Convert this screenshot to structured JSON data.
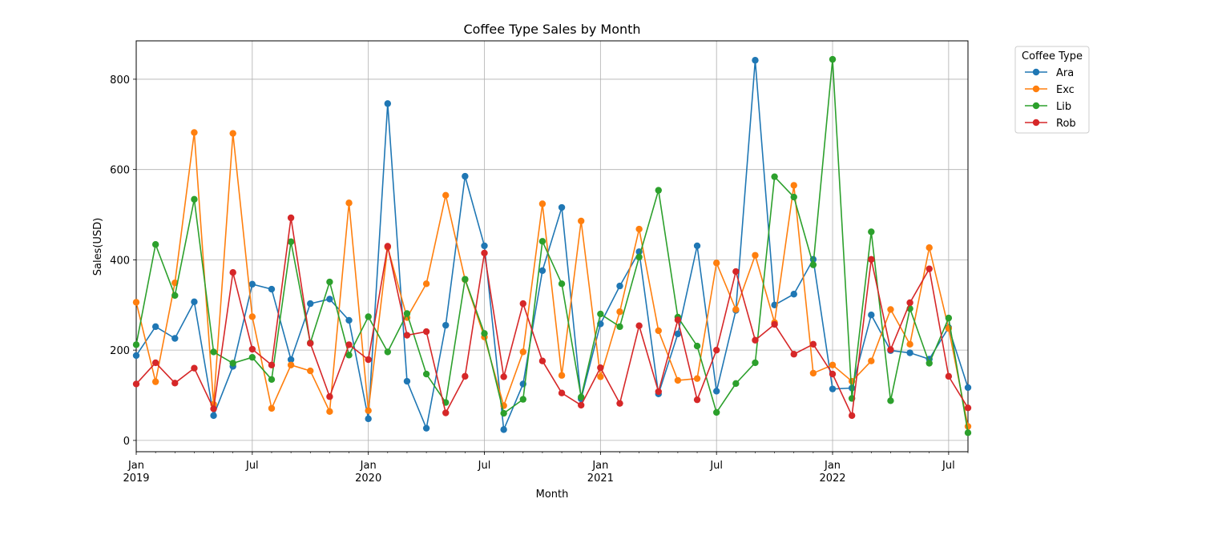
{
  "chart_data": {
    "type": "line",
    "title": "Coffee Type Sales by Month",
    "xlabel": "Month",
    "ylabel": "Sales(USD)",
    "ylim": [
      -25,
      885
    ],
    "xlim": [
      "2019-01",
      "2022-08"
    ],
    "grid": true,
    "legend": {
      "title": "Coffee Type",
      "placement": "outside-top-right"
    },
    "y_ticks": [
      0,
      200,
      400,
      600,
      800
    ],
    "x_ticks": [
      {
        "month": "2019-01",
        "label": "Jan",
        "year": "2019"
      },
      {
        "month": "2019-07",
        "label": "Jul",
        "year": ""
      },
      {
        "month": "2020-01",
        "label": "Jan",
        "year": "2020"
      },
      {
        "month": "2020-07",
        "label": "Jul",
        "year": ""
      },
      {
        "month": "2021-01",
        "label": "Jan",
        "year": "2021"
      },
      {
        "month": "2021-07",
        "label": "Jul",
        "year": ""
      },
      {
        "month": "2022-01",
        "label": "Jan",
        "year": "2022"
      },
      {
        "month": "2022-07",
        "label": "Jul",
        "year": ""
      }
    ],
    "x": [
      "2019-01",
      "2019-02",
      "2019-03",
      "2019-04",
      "2019-05",
      "2019-06",
      "2019-07",
      "2019-08",
      "2019-09",
      "2019-10",
      "2019-11",
      "2019-12",
      "2020-01",
      "2020-02",
      "2020-03",
      "2020-04",
      "2020-05",
      "2020-06",
      "2020-07",
      "2020-08",
      "2020-09",
      "2020-10",
      "2020-11",
      "2020-12",
      "2021-01",
      "2021-02",
      "2021-03",
      "2021-04",
      "2021-05",
      "2021-06",
      "2021-07",
      "2021-08",
      "2021-09",
      "2021-10",
      "2021-11",
      "2021-12",
      "2022-01",
      "2022-02",
      "2022-03",
      "2022-04",
      "2022-05",
      "2022-06",
      "2022-07",
      "2022-08"
    ],
    "series": [
      {
        "name": "Ara",
        "color": "#1f77b4",
        "values": [
          188,
          252,
          226,
          307,
          55,
          164,
          346,
          335,
          179,
          303,
          313,
          266,
          48,
          746,
          131,
          27,
          255,
          585,
          431,
          24,
          125,
          376,
          516,
          92,
          258,
          342,
          418,
          103,
          236,
          431,
          109,
          288,
          842,
          300,
          324,
          401,
          114,
          116,
          278,
          199,
          194,
          180,
          250,
          117
        ]
      },
      {
        "name": "Exc",
        "color": "#ff7f0e",
        "values": [
          306,
          130,
          349,
          682,
          80,
          680,
          274,
          71,
          167,
          154,
          64,
          526,
          66,
          428,
          272,
          347,
          543,
          356,
          229,
          77,
          196,
          524,
          144,
          486,
          141,
          285,
          468,
          243,
          133,
          137,
          393,
          290,
          410,
          261,
          565,
          149,
          167,
          131,
          176,
          290,
          213,
          427,
          248,
          31
        ]
      },
      {
        "name": "Lib",
        "color": "#2ca02c",
        "values": [
          212,
          434,
          321,
          534,
          196,
          171,
          184,
          135,
          440,
          216,
          351,
          189,
          274,
          196,
          281,
          147,
          84,
          357,
          237,
          60,
          91,
          441,
          347,
          96,
          280,
          252,
          406,
          554,
          273,
          209,
          62,
          126,
          172,
          584,
          539,
          389,
          844,
          93,
          462,
          88,
          292,
          171,
          271,
          17
        ]
      },
      {
        "name": "Rob",
        "color": "#d62728",
        "values": [
          125,
          172,
          127,
          160,
          70,
          372,
          202,
          167,
          493,
          215,
          97,
          212,
          179,
          430,
          233,
          241,
          61,
          142,
          415,
          141,
          303,
          176,
          105,
          78,
          161,
          82,
          254,
          108,
          267,
          90,
          200,
          374,
          222,
          257,
          191,
          213,
          147,
          55,
          401,
          201,
          305,
          380,
          142,
          72
        ]
      }
    ]
  }
}
